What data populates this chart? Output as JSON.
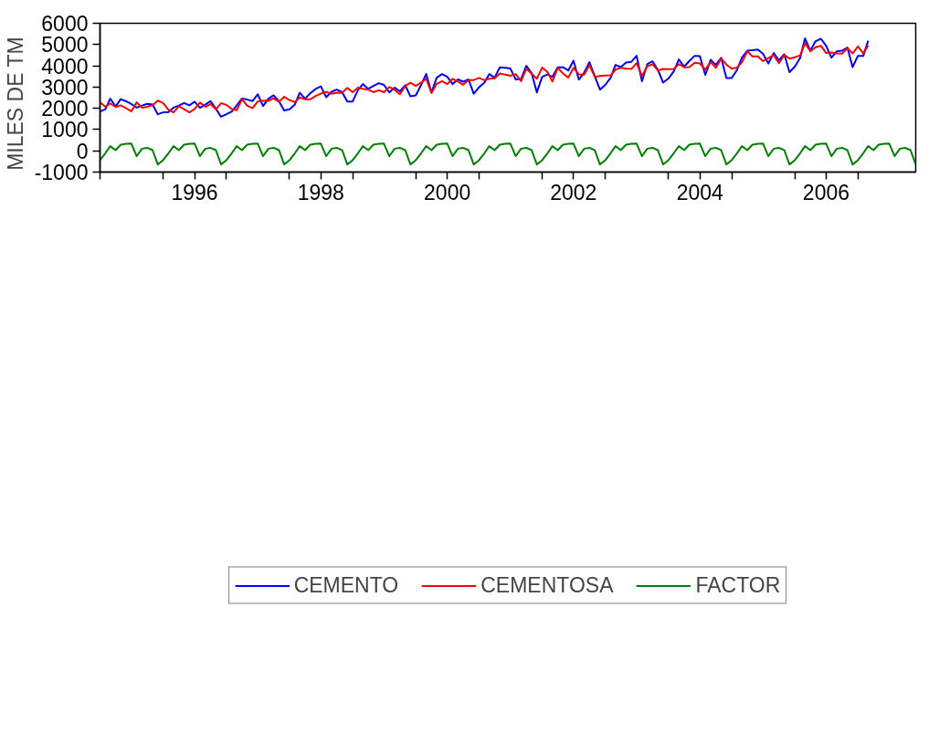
{
  "chart_data": {
    "type": "line",
    "ylabel": "MILES  DE  TM",
    "x": [
      "1995-01",
      "1995-02",
      "1995-03",
      "1995-04",
      "1995-05",
      "1995-06",
      "1995-07",
      "1995-08",
      "1995-09",
      "1995-10",
      "1995-11",
      "1995-12",
      "1996-01",
      "1996-02",
      "1996-03",
      "1996-04",
      "1996-05",
      "1996-06",
      "1996-07",
      "1996-08",
      "1996-09",
      "1996-10",
      "1996-11",
      "1996-12",
      "1997-01",
      "1997-02",
      "1997-03",
      "1997-04",
      "1997-05",
      "1997-06",
      "1997-07",
      "1997-08",
      "1997-09",
      "1997-10",
      "1997-11",
      "1997-12",
      "1998-01",
      "1998-02",
      "1998-03",
      "1998-04",
      "1998-05",
      "1998-06",
      "1998-07",
      "1998-08",
      "1998-09",
      "1998-10",
      "1998-11",
      "1998-12",
      "1999-01",
      "1999-02",
      "1999-03",
      "1999-04",
      "1999-05",
      "1999-06",
      "1999-07",
      "1999-08",
      "1999-09",
      "1999-10",
      "1999-11",
      "1999-12",
      "2000-01",
      "2000-02",
      "2000-03",
      "2000-04",
      "2000-05",
      "2000-06",
      "2000-07",
      "2000-08",
      "2000-09",
      "2000-10",
      "2000-11",
      "2000-12",
      "2001-01",
      "2001-02",
      "2001-03",
      "2001-04",
      "2001-05",
      "2001-06",
      "2001-07",
      "2001-08",
      "2001-09",
      "2001-10",
      "2001-11",
      "2001-12",
      "2002-01",
      "2002-02",
      "2002-03",
      "2002-04",
      "2002-05",
      "2002-06",
      "2002-07",
      "2002-08",
      "2002-09",
      "2002-10",
      "2002-11",
      "2002-12",
      "2003-01",
      "2003-02",
      "2003-03",
      "2003-04",
      "2003-05",
      "2003-06",
      "2003-07",
      "2003-08",
      "2003-09",
      "2003-10",
      "2003-11",
      "2003-12",
      "2004-01",
      "2004-02",
      "2004-03",
      "2004-04",
      "2004-05",
      "2004-06",
      "2004-07",
      "2004-08",
      "2004-09",
      "2004-10",
      "2004-11",
      "2004-12",
      "2005-01",
      "2005-02",
      "2005-03",
      "2005-04",
      "2005-05",
      "2005-06",
      "2005-07",
      "2005-08",
      "2005-09",
      "2005-10",
      "2005-11",
      "2005-12",
      "2006-01",
      "2006-02",
      "2006-03",
      "2006-04",
      "2006-05",
      "2006-06",
      "2006-07",
      "2006-08",
      "2006-09",
      "2006-10",
      "2006-11",
      "2006-12",
      "2007-01",
      "2007-02",
      "2007-03",
      "2007-04",
      "2007-05",
      "2007-06",
      "2007-07",
      "2007-08",
      "2007-09",
      "2007-10",
      "2007-11",
      "2007-12"
    ],
    "series": [
      {
        "name": "CEMENTO",
        "color": "#0000ff",
        "values": [
          1850,
          1960,
          2450,
          2090,
          2430,
          2330,
          2200,
          2030,
          2130,
          2210,
          2180,
          1720,
          1810,
          1820,
          2030,
          2130,
          2250,
          2140,
          2310,
          2020,
          2170,
          2340,
          1980,
          1600,
          1720,
          1850,
          2130,
          2460,
          2410,
          2340,
          2660,
          2110,
          2450,
          2610,
          2330,
          1900,
          1950,
          2180,
          2730,
          2450,
          2710,
          2910,
          3030,
          2520,
          2780,
          2880,
          2760,
          2320,
          2320,
          2860,
          3140,
          2910,
          3050,
          3180,
          3100,
          2750,
          2970,
          2800,
          3080,
          2560,
          2610,
          3100,
          3610,
          2750,
          3440,
          3610,
          3480,
          3140,
          3360,
          3250,
          3360,
          2690,
          2990,
          3210,
          3610,
          3440,
          3930,
          3910,
          3870,
          3360,
          3380,
          4000,
          3660,
          2750,
          3480,
          3590,
          3480,
          3930,
          3930,
          3780,
          4240,
          3350,
          3680,
          4170,
          3510,
          2880,
          3100,
          3440,
          4040,
          3940,
          4150,
          4190,
          4470,
          3270,
          4080,
          4210,
          3810,
          3210,
          3400,
          3740,
          4300,
          3960,
          4230,
          4470,
          4450,
          3570,
          4280,
          4040,
          4380,
          3420,
          3420,
          3810,
          4380,
          4710,
          4730,
          4770,
          4560,
          4110,
          4600,
          4260,
          4540,
          3700,
          3960,
          4380,
          5290,
          4710,
          5160,
          5270,
          4940,
          4380,
          4680,
          4710,
          4860,
          3940,
          4470,
          4470,
          5180,
          null,
          null,
          null,
          null,
          null,
          null,
          null,
          null,
          null
        ]
      },
      {
        "name": "CEMENTOSA",
        "color": "#ff0000",
        "values": [
          2290,
          2070,
          2230,
          2060,
          2140,
          2000,
          1860,
          2280,
          2030,
          2070,
          2150,
          2360,
          2250,
          1930,
          1810,
          2100,
          1960,
          1810,
          1970,
          2270,
          2070,
          2200,
          1950,
          2240,
          2160,
          1960,
          1910,
          2430,
          2120,
          2010,
          2320,
          2360,
          2350,
          2470,
          2300,
          2540,
          2390,
          2290,
          2510,
          2420,
          2420,
          2580,
          2690,
          2770,
          2680,
          2740,
          2730,
          2960,
          2760,
          2970,
          2920,
          2880,
          2760,
          2850,
          2760,
          3000,
          2870,
          2660,
          3050,
          3200,
          3050,
          3210,
          3390,
          2720,
          3150,
          3280,
          3140,
          3390,
          3260,
          3110,
          3330,
          3330,
          3430,
          3320,
          3390,
          3410,
          3640,
          3580,
          3530,
          3610,
          3280,
          3860,
          3630,
          3390,
          3920,
          3700,
          3260,
          3900,
          3640,
          3450,
          3900,
          3600,
          3580,
          4030,
          3480,
          3520,
          3540,
          3550,
          3820,
          3910,
          3860,
          3850,
          4130,
          3520,
          3980,
          4070,
          3780,
          3850,
          3840,
          3850,
          4080,
          3930,
          3940,
          4140,
          4110,
          3820,
          4180,
          3900,
          4350,
          4060,
          3860,
          3920,
          4160,
          4680,
          4440,
          4440,
          4220,
          4360,
          4500,
          4120,
          4510,
          4340,
          4400,
          4490,
          5070,
          4680,
          4870,
          4940,
          4600,
          4630,
          4580,
          4570,
          4830,
          4580,
          4910,
          4580,
          4960,
          null,
          null,
          null,
          null,
          null,
          null,
          null,
          null,
          null
        ]
      },
      {
        "name": "FACTOR",
        "color": "#008000",
        "values": [
          -440,
          -110,
          220,
          30,
          290,
          330,
          340,
          -250,
          100,
          140,
          30,
          -640,
          -440,
          -110,
          220,
          30,
          290,
          330,
          340,
          -250,
          100,
          140,
          30,
          -640,
          -440,
          -110,
          220,
          30,
          290,
          330,
          340,
          -250,
          100,
          140,
          30,
          -640,
          -440,
          -110,
          220,
          30,
          290,
          330,
          340,
          -250,
          100,
          140,
          30,
          -640,
          -440,
          -110,
          220,
          30,
          290,
          330,
          340,
          -250,
          100,
          140,
          30,
          -640,
          -440,
          -110,
          220,
          30,
          290,
          330,
          340,
          -250,
          100,
          140,
          30,
          -640,
          -440,
          -110,
          220,
          30,
          290,
          330,
          340,
          -250,
          100,
          140,
          30,
          -640,
          -440,
          -110,
          220,
          30,
          290,
          330,
          340,
          -250,
          100,
          140,
          30,
          -640,
          -440,
          -110,
          220,
          30,
          290,
          330,
          340,
          -250,
          100,
          140,
          30,
          -640,
          -440,
          -110,
          220,
          30,
          290,
          330,
          340,
          -250,
          100,
          140,
          30,
          -640,
          -440,
          -110,
          220,
          30,
          290,
          330,
          340,
          -250,
          100,
          140,
          30,
          -640,
          -440,
          -110,
          220,
          30,
          290,
          330,
          340,
          -250,
          100,
          140,
          30,
          -640,
          -440,
          -110,
          220,
          30,
          290,
          330,
          340,
          -250,
          100,
          140,
          30,
          -640
        ]
      }
    ],
    "xlim": [
      "1995-01",
      "2007-12"
    ],
    "xticks": [
      {
        "value": "1995-01",
        "label": null
      },
      {
        "value": "1996-01",
        "label": null
      },
      {
        "value": "1996-07",
        "label": "1996"
      },
      {
        "value": "1997-01",
        "label": null
      },
      {
        "value": "1998-01",
        "label": null
      },
      {
        "value": "1998-07",
        "label": "1998"
      },
      {
        "value": "1999-01",
        "label": null
      },
      {
        "value": "2000-01",
        "label": null
      },
      {
        "value": "2000-07",
        "label": "2000"
      },
      {
        "value": "2001-01",
        "label": null
      },
      {
        "value": "2002-01",
        "label": null
      },
      {
        "value": "2002-07",
        "label": "2002"
      },
      {
        "value": "2003-01",
        "label": null
      },
      {
        "value": "2004-01",
        "label": null
      },
      {
        "value": "2004-07",
        "label": "2004"
      },
      {
        "value": "2005-01",
        "label": null
      },
      {
        "value": "2006-01",
        "label": null
      },
      {
        "value": "2006-07",
        "label": "2006"
      },
      {
        "value": "2007-01",
        "label": null
      }
    ],
    "ylim": [
      -1000,
      6000
    ],
    "yticks": [
      -1000,
      0,
      1000,
      2000,
      3000,
      4000,
      5000,
      6000
    ],
    "grid": false,
    "legend": "bottom",
    "line_style": "solid"
  }
}
